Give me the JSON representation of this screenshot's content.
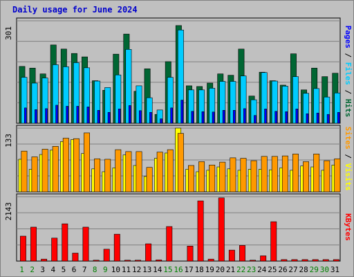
{
  "title": "Daily usage for June 2024",
  "chart_data": [
    {
      "type": "bar",
      "categories": [
        "1",
        "2",
        "3",
        "4",
        "5",
        "6",
        "7",
        "8",
        "9",
        "10",
        "11",
        "12",
        "13",
        "14",
        "15",
        "16",
        "17",
        "18",
        "19",
        "20",
        "21",
        "22",
        "23",
        "24",
        "25",
        "26",
        "27",
        "28",
        "29",
        "30",
        "31"
      ],
      "weekend_days": [
        "1",
        "2",
        "8",
        "9",
        "15",
        "16",
        "22",
        "23",
        "29",
        "30"
      ],
      "max_label": "301",
      "ylim": [
        0,
        301
      ],
      "grid": true,
      "series": [
        {
          "name": "Hits",
          "color": "#006633",
          "values": [
            167,
            162,
            145,
            230,
            218,
            205,
            195,
            125,
            97,
            203,
            262,
            94,
            160,
            26,
            181,
            287,
            110,
            108,
            118,
            145,
            141,
            218,
            80,
            150,
            125,
            112,
            204,
            98,
            162,
            137,
            147
          ]
        },
        {
          "name": "Files",
          "color": "#00ccff",
          "values": [
            135,
            118,
            133,
            172,
            166,
            178,
            163,
            124,
            105,
            142,
            217,
            110,
            75,
            39,
            135,
            274,
            98,
            98,
            103,
            123,
            123,
            139,
            69,
            149,
            124,
            109,
            137,
            88,
            102,
            77,
            89
          ]
        },
        {
          "name": "Pages",
          "color": "#0000ff",
          "values": [
            45,
            40,
            43,
            53,
            50,
            50,
            48,
            38,
            32,
            42,
            52,
            37,
            32,
            13,
            45,
            68,
            35,
            34,
            33,
            38,
            38,
            43,
            23,
            42,
            35,
            34,
            42,
            28,
            30,
            26,
            32
          ]
        }
      ],
      "axis_label": [
        "Pages",
        "Files",
        "Hits"
      ]
    },
    {
      "type": "bar",
      "categories": [
        "1",
        "2",
        "3",
        "4",
        "5",
        "6",
        "7",
        "8",
        "9",
        "10",
        "11",
        "12",
        "13",
        "14",
        "15",
        "16",
        "17",
        "18",
        "19",
        "20",
        "21",
        "22",
        "23",
        "24",
        "25",
        "26",
        "27",
        "28",
        "29",
        "30",
        "31"
      ],
      "max_label": "133",
      "ylim": [
        0,
        133
      ],
      "grid": true,
      "series": [
        {
          "name": "Visits",
          "color": "#ffff00",
          "values": [
            68,
            47,
            78,
            87,
            105,
            109,
            80,
            48,
            42,
            50,
            77,
            55,
            32,
            70,
            81,
            133,
            47,
            42,
            45,
            52,
            48,
            45,
            47,
            47,
            46,
            50,
            45,
            54,
            52,
            45,
            56
          ]
        },
        {
          "name": "Sites",
          "color": "#ff9900",
          "values": [
            85,
            73,
            89,
            95,
            112,
            111,
            123,
            69,
            68,
            88,
            84,
            84,
            51,
            83,
            88,
            122,
            55,
            63,
            56,
            62,
            71,
            70,
            65,
            74,
            74,
            75,
            79,
            63,
            79,
            65,
            69
          ]
        }
      ],
      "axis_label": [
        "Sites",
        "Visits"
      ]
    },
    {
      "type": "bar",
      "categories": [
        "1",
        "2",
        "3",
        "4",
        "5",
        "6",
        "7",
        "8",
        "9",
        "10",
        "11",
        "12",
        "13",
        "14",
        "15",
        "16",
        "17",
        "18",
        "19",
        "20",
        "21",
        "22",
        "23",
        "24",
        "25",
        "26",
        "27",
        "28",
        "29",
        "30",
        "31"
      ],
      "max_label": "2143",
      "ylim": [
        0,
        2143
      ],
      "grid": true,
      "series": [
        {
          "name": "KBytes",
          "color": "#ff0000",
          "values": [
            830,
            1130,
            65,
            765,
            1240,
            265,
            1130,
            30,
            395,
            895,
            30,
            30,
            575,
            40,
            1150,
            0,
            500,
            2003,
            65,
            2103,
            365,
            520,
            30,
            175,
            1310,
            50,
            50,
            50,
            50,
            50,
            50
          ]
        }
      ],
      "axis_label": [
        "KBytes"
      ]
    }
  ]
}
